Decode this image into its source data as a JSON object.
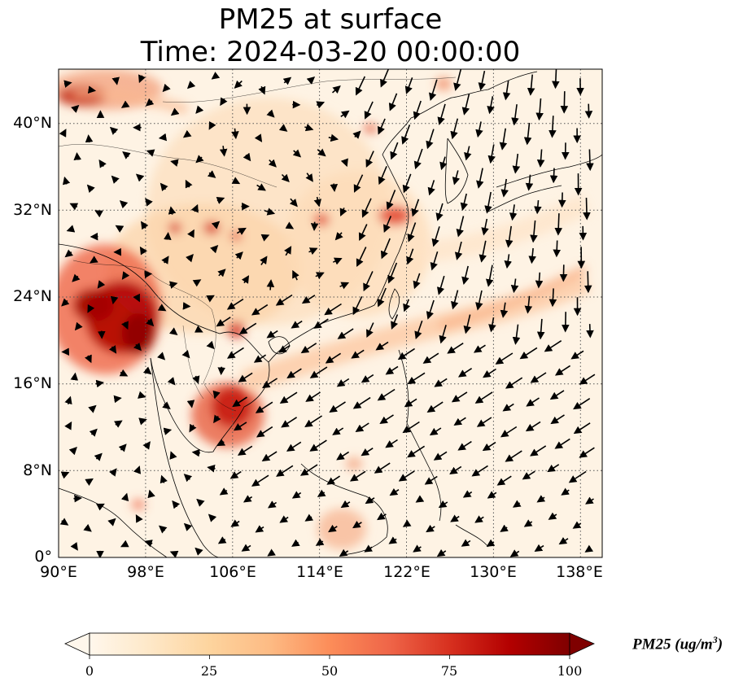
{
  "title": {
    "line1": "PM25 at surface",
    "line2": "Time: 2024-03-20 00:00:00"
  },
  "map": {
    "projection": "PlateCarree",
    "lon_range": [
      90,
      140
    ],
    "lat_range": [
      0,
      45
    ],
    "lat_ticks": [
      {
        "value": 0,
        "label": "0°"
      },
      {
        "value": 8,
        "label": "8°N"
      },
      {
        "value": 16,
        "label": "16°N"
      },
      {
        "value": 24,
        "label": "24°N"
      },
      {
        "value": 32,
        "label": "32°N"
      },
      {
        "value": 40,
        "label": "40°N"
      }
    ],
    "lon_ticks": [
      {
        "value": 90,
        "label": "90°E"
      },
      {
        "value": 98,
        "label": "98°E"
      },
      {
        "value": 106,
        "label": "106°E"
      },
      {
        "value": 114,
        "label": "114°E"
      },
      {
        "value": 122,
        "label": "122°E"
      },
      {
        "value": 130,
        "label": "130°E"
      },
      {
        "value": 138,
        "label": "138°E"
      }
    ],
    "gridlines": "dotted",
    "field": "PM25",
    "vectors": "wind"
  },
  "colorbar": {
    "label_main": "PM25 (ug/m",
    "label_sup": "3",
    "label_end": ")",
    "vmin": 0,
    "vmax": 100,
    "extend": "both",
    "cmap": "OrRd",
    "ticks": [
      {
        "value": 0,
        "label": "0"
      },
      {
        "value": 25,
        "label": "25"
      },
      {
        "value": 50,
        "label": "50"
      },
      {
        "value": 75,
        "label": "75"
      },
      {
        "value": 100,
        "label": "100"
      }
    ],
    "colors": [
      "#fff7ec",
      "#fee8c8",
      "#fdd49e",
      "#fdbb84",
      "#fc8d59",
      "#ef6548",
      "#d7301f",
      "#b30000",
      "#7f0000"
    ]
  }
}
